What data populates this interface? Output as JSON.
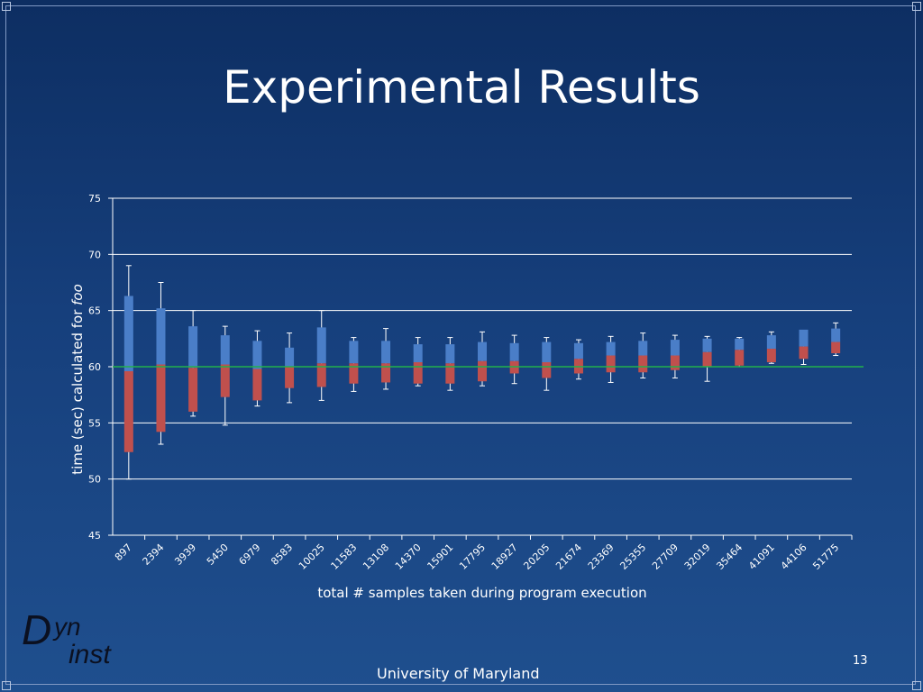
{
  "slide": {
    "title": "Experimental Results",
    "footer": "University of Maryland",
    "page_number": "13",
    "logo": {
      "big_letter": "D",
      "line1": "yn",
      "line2": "inst"
    }
  },
  "colors": {
    "background": "#163f7c",
    "upper_box": "#4a7ec8",
    "lower_box": "#c0504d",
    "reference_line": "#22b14c",
    "gridline": "#ffffff"
  },
  "chart_data": {
    "type": "box",
    "ylabel_prefix": "time (sec) calculated for ",
    "ylabel_emph": "foo",
    "xlabel": "total # samples taken during program execution",
    "ylim": [
      45,
      75
    ],
    "yticks": [
      45,
      50,
      55,
      60,
      65,
      70,
      75
    ],
    "reference_line": 60,
    "categories": [
      "897",
      "2394",
      "3939",
      "5450",
      "6979",
      "8583",
      "10025",
      "11583",
      "13108",
      "14370",
      "15901",
      "17795",
      "18927",
      "20205",
      "21674",
      "23369",
      "25355",
      "27709",
      "32019",
      "35464",
      "41091",
      "44106",
      "51775"
    ],
    "min": [
      50.0,
      53.1,
      55.6,
      54.8,
      56.5,
      56.8,
      57.0,
      57.8,
      58.0,
      58.3,
      57.9,
      58.3,
      58.5,
      57.9,
      58.9,
      58.6,
      59.0,
      59.0,
      58.7,
      60.0,
      60.3,
      60.2,
      61.0
    ],
    "q1": [
      52.4,
      54.2,
      56.0,
      57.3,
      57.0,
      58.1,
      58.2,
      58.5,
      58.6,
      58.5,
      58.5,
      58.7,
      59.4,
      59.0,
      59.4,
      59.5,
      59.5,
      59.7,
      60.0,
      60.1,
      60.4,
      60.7,
      61.2
    ],
    "median": [
      59.6,
      60.2,
      59.9,
      60.2,
      59.8,
      60.0,
      60.3,
      60.3,
      60.3,
      60.4,
      60.3,
      60.5,
      60.5,
      60.4,
      60.7,
      61.0,
      61.0,
      61.0,
      61.3,
      61.5,
      61.6,
      61.8,
      62.2
    ],
    "q3": [
      66.3,
      65.2,
      63.6,
      62.8,
      62.3,
      61.7,
      63.5,
      62.3,
      62.3,
      62.0,
      62.0,
      62.2,
      62.1,
      62.2,
      62.1,
      62.2,
      62.3,
      62.4,
      62.5,
      62.5,
      62.8,
      63.3,
      63.4
    ],
    "max": [
      69.0,
      67.5,
      65.0,
      63.6,
      63.2,
      63.0,
      65.0,
      62.6,
      63.4,
      62.6,
      62.6,
      63.1,
      62.8,
      62.6,
      62.4,
      62.7,
      63.0,
      62.8,
      62.7,
      62.6,
      63.1,
      63.2,
      63.9
    ]
  }
}
